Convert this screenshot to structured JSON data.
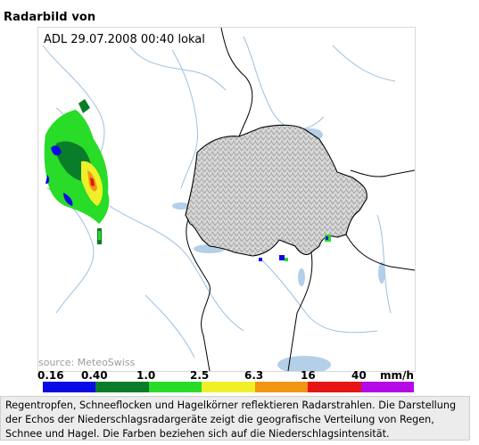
{
  "header": {
    "title": "Radarbild von"
  },
  "map": {
    "timestamp": "ADL 29.07.2008 00:40 lokal",
    "source": "source: MeteoSwiss",
    "colors": {
      "lake": "#b4cfe8",
      "river": "#9ec0de",
      "border": "#000000",
      "relief": "#c8c8c8"
    }
  },
  "scale": {
    "labels": [
      "0.16",
      "0.40",
      "1.0",
      "2.5",
      "6.3",
      "16",
      "40",
      "mm/h"
    ],
    "colors": [
      "#0a0ae6",
      "#0a7d2a",
      "#28dc28",
      "#f0f028",
      "#f09614",
      "#e61414",
      "#b40ae6"
    ]
  },
  "caption": {
    "text": "Regentropfen, Schneeflocken und Hagelkörner reflektieren Radarstrahlen. Die Darstellung der Echos der Niederschlagsradargeräte zeigt die geografische Verteilung von Regen, Schnee und Hagel. Die Farben beziehen sich auf die Niederschlagsintensität."
  }
}
